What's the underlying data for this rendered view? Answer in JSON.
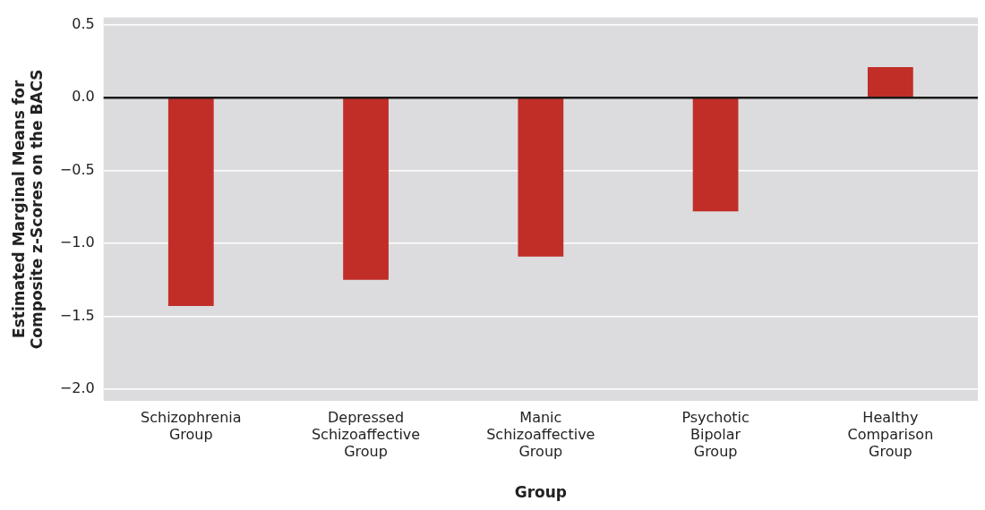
{
  "chart_data": {
    "type": "bar",
    "xlabel": "Group",
    "ylabel": "Estimated Marginal Means for\nComposite z-Scores on the BACS",
    "categories": [
      "Schizophrenia\nGroup",
      "Depressed\nSchizoaffective\nGroup",
      "Manic\nSchizoaffective\nGroup",
      "Psychotic\nBipolar\nGroup",
      "Healthy\nComparison\nGroup"
    ],
    "values": [
      -1.43,
      -1.25,
      -1.09,
      -0.78,
      0.21
    ],
    "color": "#c12e28",
    "ylim": [
      -2.08,
      0.55
    ],
    "yticks": [
      {
        "value": 0.5,
        "label": "0.5"
      },
      {
        "value": 0,
        "label": "0.0"
      },
      {
        "value": -0.5,
        "label": "−0.5"
      },
      {
        "value": -1,
        "label": "−1.0"
      },
      {
        "value": -1.5,
        "label": "−1.5"
      },
      {
        "value": -2,
        "label": "−2.0"
      }
    ],
    "grid": "y",
    "legend": false,
    "ref_lines": [
      {
        "axis": "y",
        "value": 0,
        "color": "#1a1a1a"
      }
    ]
  }
}
